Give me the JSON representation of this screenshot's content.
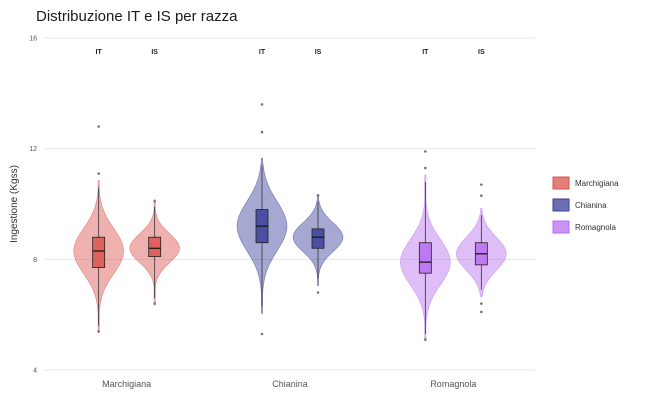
{
  "chart_data": {
    "type": "violin",
    "title": "Distribuzione IT e IS per razza",
    "ylabel": "Ingestione (Kgss)",
    "xlabel": "",
    "ylim": [
      4,
      16
    ],
    "yticks": [
      4,
      8,
      12,
      16
    ],
    "grid": true,
    "legend_position": "right",
    "categories": [
      "Marchigiana",
      "Chianina",
      "Romagnola"
    ],
    "subgroups": [
      "IT",
      "IS"
    ],
    "series": [
      {
        "name": "Marchigiana",
        "color": "#d9534f",
        "groups": [
          {
            "sub": "IT",
            "min": 5.6,
            "q1": 7.7,
            "median": 8.3,
            "q3": 8.8,
            "max": 10.6,
            "outliers": [
              5.4,
              11.1,
              12.8
            ]
          },
          {
            "sub": "IS",
            "min": 6.6,
            "q1": 8.1,
            "median": 8.4,
            "q3": 8.8,
            "max": 9.9,
            "outliers": [
              6.4,
              10.1
            ]
          }
        ]
      },
      {
        "name": "Chianina",
        "color": "#3a3f9a",
        "groups": [
          {
            "sub": "IT",
            "min": 6.3,
            "q1": 8.6,
            "median": 9.2,
            "q3": 9.8,
            "max": 11.4,
            "outliers": [
              5.3,
              12.6,
              13.6
            ]
          },
          {
            "sub": "IS",
            "min": 7.3,
            "q1": 8.4,
            "median": 8.8,
            "q3": 9.1,
            "max": 10.1,
            "outliers": [
              6.8,
              10.3
            ]
          }
        ]
      },
      {
        "name": "Romagnola",
        "color": "#b86ef0",
        "groups": [
          {
            "sub": "IT",
            "min": 5.3,
            "q1": 7.5,
            "median": 7.9,
            "q3": 8.6,
            "max": 10.8,
            "outliers": [
              5.1,
              11.3,
              11.9
            ]
          },
          {
            "sub": "IS",
            "min": 6.9,
            "q1": 7.8,
            "median": 8.2,
            "q3": 8.6,
            "max": 9.6,
            "outliers": [
              6.1,
              6.4,
              10.3,
              10.7
            ]
          }
        ]
      }
    ]
  }
}
